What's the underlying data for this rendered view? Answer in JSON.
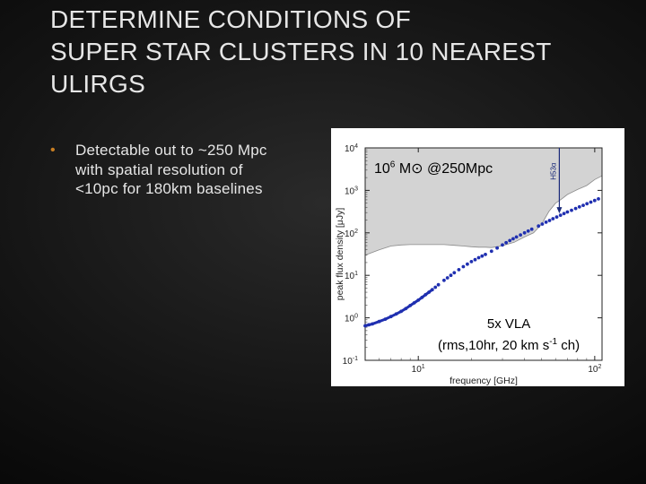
{
  "slide": {
    "title_lines": [
      "DETERMINE CONDITIONS OF",
      "SUPER STAR CLUSTERS IN 10 NEAREST",
      "ULIRGS"
    ],
    "bullets": [
      "Detectable out to ~250 Mpc with spatial resolution of <10pc for 180km baselines"
    ]
  },
  "annotations": {
    "mass_base": "10",
    "mass_exp": "6",
    "mass_unit": "M⊙ @250Mpc",
    "vla_line1": "5x VLA",
    "vla_line2_pre": "(rms,10hr, 20 km s",
    "vla_line2_exp": "-1",
    "vla_line2_post": " ch)",
    "line_marker": "H53α"
  },
  "colors": {
    "bullet": "#c97f23",
    "sensitivity_fill": "#d3d3d3",
    "signal": "#1f2fb0"
  },
  "chart_data": {
    "type": "area",
    "xlabel": "frequency [GHz]",
    "ylabel": "peak flux density [μJy]",
    "x_scale": "log",
    "y_scale": "log",
    "xlim": [
      5,
      110
    ],
    "ylim": [
      0.1,
      10000
    ],
    "x_ticks": [
      {
        "base": "10",
        "exp": "1",
        "value": 10
      },
      {
        "base": "10",
        "exp": "2",
        "value": 100
      }
    ],
    "y_ticks": [
      {
        "base": "10",
        "exp": "-1",
        "value": 0.1
      },
      {
        "base": "10",
        "exp": "0",
        "value": 1
      },
      {
        "base": "10",
        "exp": "1",
        "value": 10
      },
      {
        "base": "10",
        "exp": "2",
        "value": 100
      },
      {
        "base": "10",
        "exp": "3",
        "value": 1000
      },
      {
        "base": "10",
        "exp": "4",
        "value": 10000
      }
    ],
    "series": [
      {
        "x": [
          5,
          6,
          7,
          8,
          9,
          10,
          12,
          14,
          16,
          18,
          20,
          22,
          24,
          26,
          28,
          30,
          35,
          40,
          45,
          50,
          55,
          60,
          65,
          70,
          80,
          90,
          100,
          110
        ],
        "y": [
          30,
          40,
          49,
          52,
          53,
          53,
          53,
          53,
          51,
          49,
          47,
          46,
          46,
          45,
          47,
          50,
          60,
          80,
          100,
          160,
          320,
          500,
          630,
          800,
          1050,
          1300,
          1800,
          2200
        ]
      },
      {
        "x": [
          5,
          5.5,
          6,
          6.5,
          7,
          7.5,
          8,
          8.5,
          9,
          10,
          11,
          12,
          13,
          14,
          16,
          18,
          20,
          22,
          24,
          26,
          28,
          30,
          33,
          36,
          40,
          44,
          48,
          53,
          58,
          64,
          70,
          78,
          86,
          95,
          105,
          110
        ],
        "y": [
          0.65,
          0.72,
          0.82,
          0.93,
          1.07,
          1.23,
          1.42,
          1.65,
          1.95,
          2.6,
          3.5,
          4.6,
          6.0,
          7.6,
          11.5,
          16,
          21,
          26,
          31,
          37,
          44,
          52,
          66,
          80,
          100,
          122,
          145,
          178,
          215,
          260,
          310,
          375,
          445,
          530,
          630,
          690
        ]
      }
    ],
    "line_marker_x": 63,
    "line_marker_y_start": 40000,
    "line_marker_y_end": 300
  }
}
